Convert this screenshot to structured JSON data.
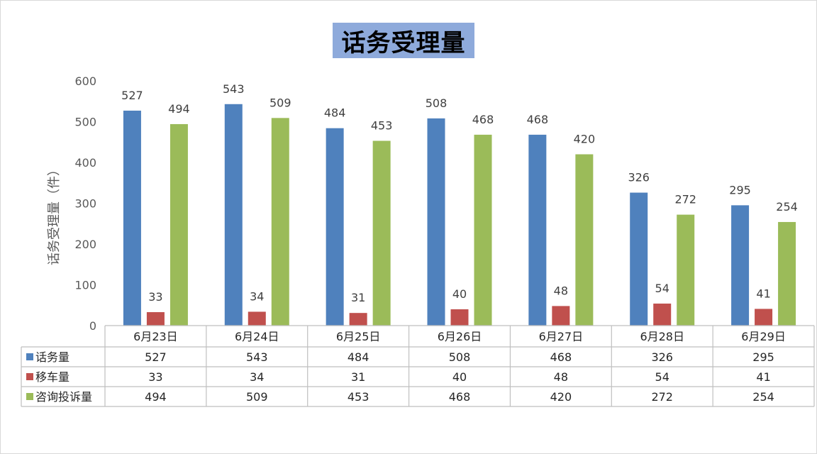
{
  "chart_data": {
    "type": "bar",
    "title": "话务受理量",
    "ylabel": "话务受理量（件）",
    "xlabel": "",
    "ylim": [
      0,
      600
    ],
    "yticks": [
      0,
      100,
      200,
      300,
      400,
      500,
      600
    ],
    "grid": false,
    "legend": "data-table",
    "categories": [
      "6月23日",
      "6月24日",
      "6月25日",
      "6月26日",
      "6月27日",
      "6月28日",
      "6月29日"
    ],
    "series": [
      {
        "name": "话务量",
        "color": "#4f81bd",
        "values": [
          527,
          543,
          484,
          508,
          468,
          326,
          295
        ]
      },
      {
        "name": "移车量",
        "color": "#c0504d",
        "values": [
          33,
          34,
          31,
          40,
          48,
          54,
          41
        ]
      },
      {
        "name": "咨询投诉量",
        "color": "#9bbb59",
        "values": [
          494,
          509,
          453,
          468,
          420,
          272,
          254
        ]
      }
    ]
  }
}
